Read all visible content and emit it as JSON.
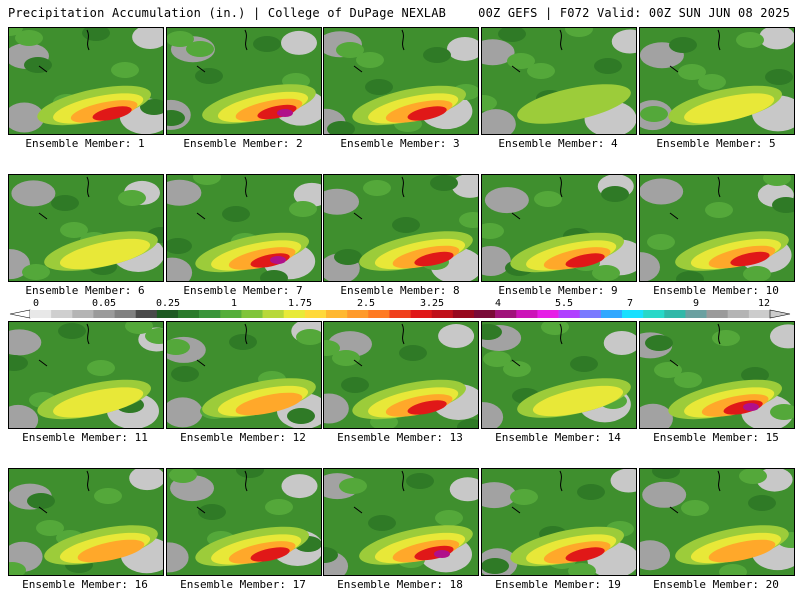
{
  "header": {
    "left": "Precipitation Accumulation (in.) | College of DuPage NEXLAB",
    "right": "00Z GEFS | F072 Valid: 00Z SUN JUN 08 2025"
  },
  "legend": {
    "labels": [
      "0",
      "0.05",
      "0.25",
      "1",
      "1.75",
      "2.5",
      "3.25",
      "4",
      "5.5",
      "7",
      "9",
      "12"
    ],
    "colors": [
      "#e8e8e8",
      "#cfcfcf",
      "#b4b4b4",
      "#9a9a9a",
      "#808080",
      "#4a4a4a",
      "#1e5a22",
      "#2a7a2a",
      "#3a953a",
      "#55ae3a",
      "#80c43a",
      "#b8d83a",
      "#e8ea38",
      "#ffd93a",
      "#ffb830",
      "#ff9a2a",
      "#ff7a22",
      "#f0401c",
      "#e01818",
      "#c0101a",
      "#98081e",
      "#7a0a38",
      "#a0127a",
      "#cc14b8",
      "#e61ee6",
      "#b040ff",
      "#7a7aff",
      "#30a8ff",
      "#18e0ff",
      "#28d8c8",
      "#30b8a8",
      "#6aa0a0",
      "#9a9a9a",
      "#b4b4b4",
      "#cccccc"
    ]
  },
  "panels": [
    {
      "caption": "Ensemble Member: 1",
      "intensity": 3
    },
    {
      "caption": "Ensemble Member: 2",
      "intensity": 4
    },
    {
      "caption": "Ensemble Member: 3",
      "intensity": 3
    },
    {
      "caption": "Ensemble Member: 4",
      "intensity": 0
    },
    {
      "caption": "Ensemble Member: 5",
      "intensity": 1
    },
    {
      "caption": "Ensemble Member: 6",
      "intensity": 1
    },
    {
      "caption": "Ensemble Member: 7",
      "intensity": 4
    },
    {
      "caption": "Ensemble Member: 8",
      "intensity": 3
    },
    {
      "caption": "Ensemble Member: 9",
      "intensity": 3
    },
    {
      "caption": "Ensemble Member: 10",
      "intensity": 3
    },
    {
      "caption": "Ensemble Member: 11",
      "intensity": 1
    },
    {
      "caption": "Ensemble Member: 12",
      "intensity": 2
    },
    {
      "caption": "Ensemble Member: 13",
      "intensity": 3
    },
    {
      "caption": "Ensemble Member: 14",
      "intensity": 1
    },
    {
      "caption": "Ensemble Member: 15",
      "intensity": 4
    },
    {
      "caption": "Ensemble Member: 16",
      "intensity": 2
    },
    {
      "caption": "Ensemble Member: 17",
      "intensity": 3
    },
    {
      "caption": "Ensemble Member: 18",
      "intensity": 4
    },
    {
      "caption": "Ensemble Member: 19",
      "intensity": 3
    },
    {
      "caption": "Ensemble Member: 20",
      "intensity": 2
    }
  ]
}
